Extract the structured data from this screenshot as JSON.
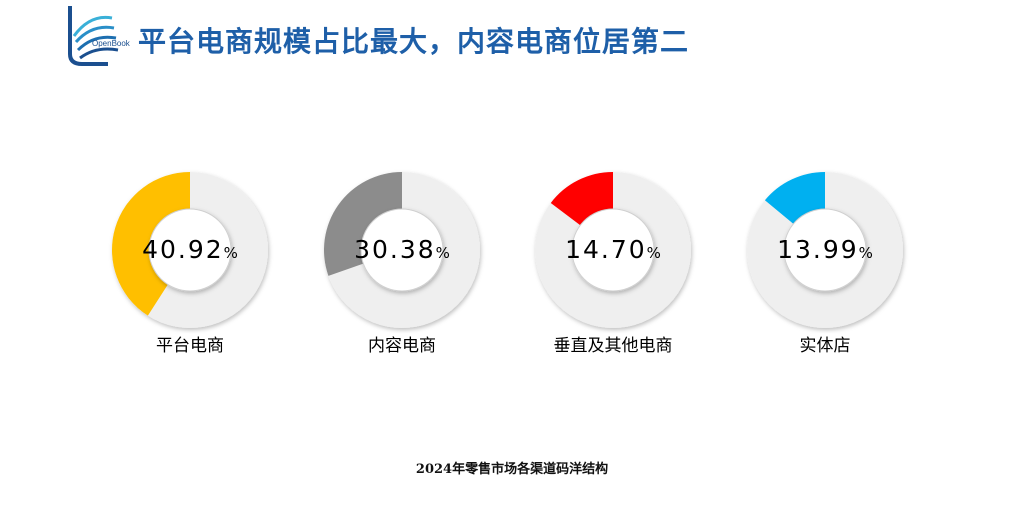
{
  "title": "平台电商规模占比最大，内容电商位居第二",
  "logo": {
    "text": "OpenBook"
  },
  "colors": {
    "title": "#1e5fa8",
    "track": "#efefef",
    "center": "#ffffff"
  },
  "chart_data": {
    "type": "pie",
    "caption": "2024年零售市场各渠道码洋结构",
    "unit": "%",
    "categories": [
      "平台电商",
      "内容电商",
      "垂直及其他电商",
      "实体店"
    ],
    "values": [
      40.92,
      30.38,
      14.7,
      13.99
    ],
    "display_values": [
      "40.92",
      "30.38",
      "14.70",
      "13.99"
    ],
    "colors": [
      "#ffbf00",
      "#8c8c8c",
      "#ff0000",
      "#00b0f0"
    ]
  }
}
